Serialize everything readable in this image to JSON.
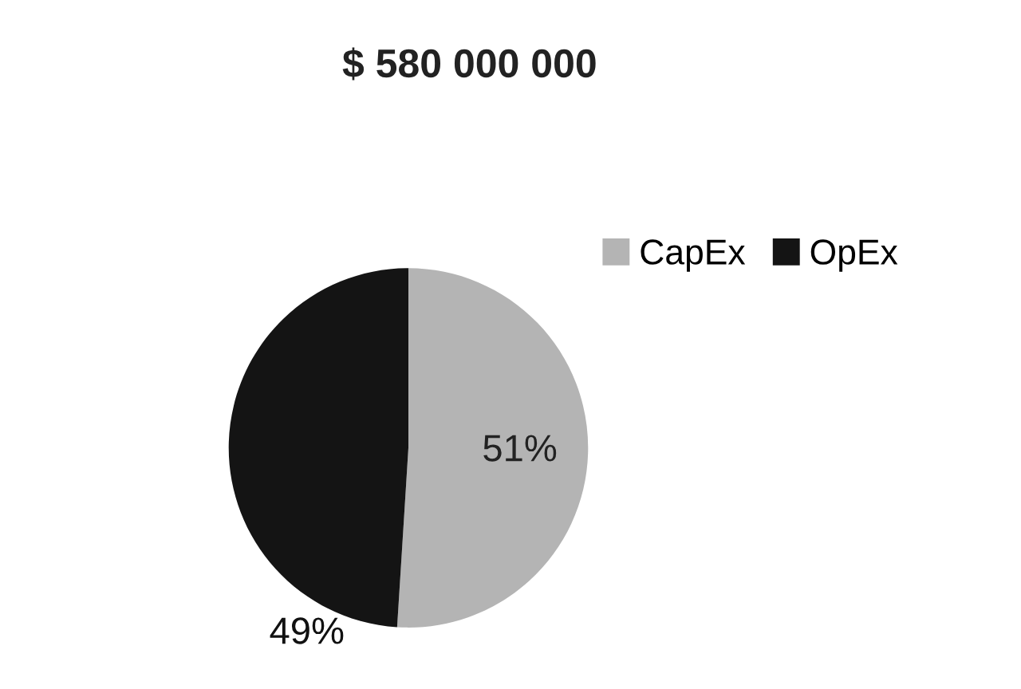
{
  "chart_data": {
    "type": "pie",
    "title": "$ 580 000 000",
    "categories": [
      "CapEx",
      "OpEx"
    ],
    "values": [
      51,
      49
    ],
    "colors": [
      "#b4b4b4",
      "#141414"
    ],
    "value_labels": [
      "51%",
      "49%"
    ],
    "legend": "right"
  }
}
